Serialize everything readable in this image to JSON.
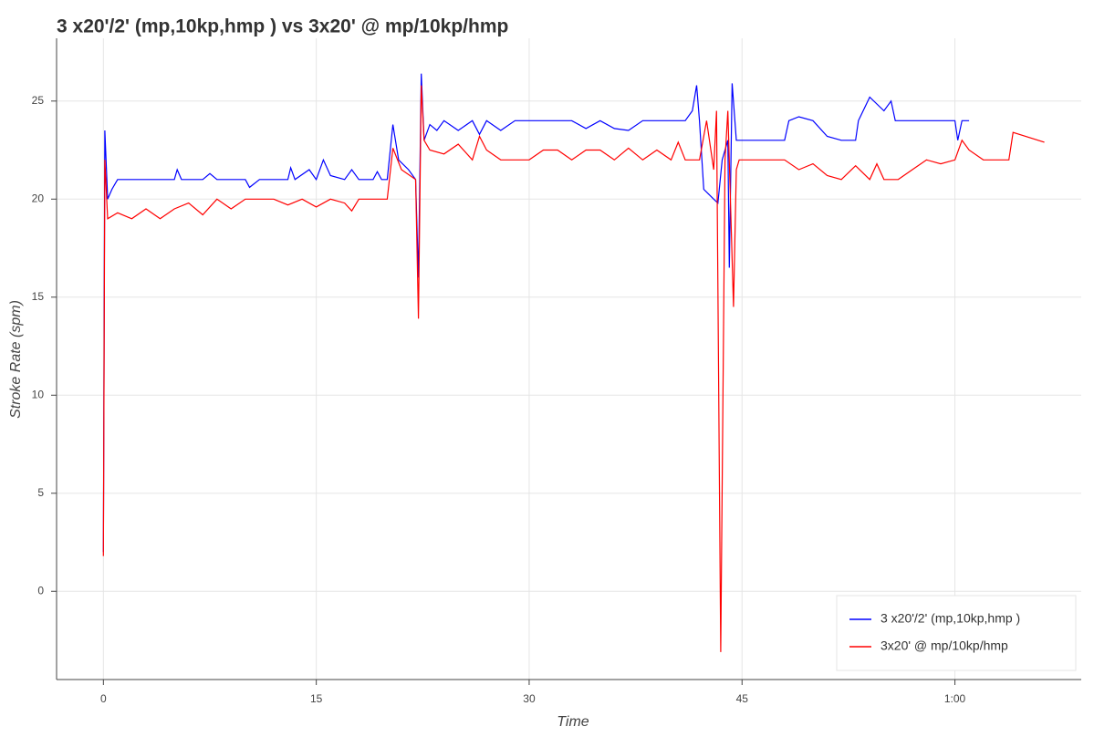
{
  "chart_data": {
    "type": "line",
    "title": "3 x20'/2' (mp,10kp,hmp ) vs 3x20' @ mp/10kp/hmp",
    "x_label": "Time",
    "y_label": "Stroke Rate (spm)",
    "xlim": [
      -3.3,
      68.9
    ],
    "ylim": [
      -4.5,
      28.2
    ],
    "xticks": [
      0,
      15,
      30,
      45,
      {
        "value": 60,
        "label": "1:00"
      }
    ],
    "yticks": [
      0,
      5,
      10,
      15,
      20,
      25
    ],
    "grid": true,
    "legend": "bottom-right",
    "series": [
      {
        "name": "3 x20'/2' (mp,10kp,hmp )",
        "color": "#0000ff",
        "x": [
          0,
          0.1,
          0.3,
          0.6,
          1,
          2,
          3,
          4,
          5,
          5.2,
          5.5,
          7,
          7.5,
          8,
          10,
          10.3,
          11,
          13,
          13.2,
          13.5,
          14.5,
          15,
          15.5,
          16,
          17,
          17.5,
          18,
          19,
          19.3,
          19.6,
          20,
          20.4,
          20.8,
          21.5,
          22,
          22.2,
          22.4,
          22.6,
          23,
          23.5,
          24,
          25,
          26,
          26.5,
          27,
          28,
          29,
          30,
          32,
          33,
          34,
          35,
          36,
          37,
          38,
          39,
          40,
          41,
          41.5,
          41.8,
          42,
          42.3,
          43,
          43.3,
          43.6,
          44,
          44.1,
          44.3,
          44.6,
          46,
          48,
          48.3,
          49,
          50,
          51,
          52,
          53,
          53.2,
          54,
          55,
          55.5,
          55.8,
          57,
          60,
          60.2,
          60.5,
          61
        ],
        "values": [
          2,
          23.5,
          20,
          20.5,
          21,
          21,
          21,
          21,
          21,
          21.5,
          21,
          21,
          21.3,
          21,
          21,
          20.6,
          21,
          21,
          21.6,
          21,
          21.5,
          21,
          22,
          21.2,
          21,
          21.5,
          21,
          21,
          21.4,
          21,
          21,
          23.8,
          22,
          21.5,
          21,
          16,
          26.4,
          23,
          23.8,
          23.5,
          24,
          23.5,
          24,
          23.3,
          24,
          23.5,
          24,
          24,
          24,
          24,
          23.6,
          24,
          23.6,
          23.5,
          24,
          24,
          24,
          24,
          24.5,
          25.8,
          24,
          20.5,
          20,
          19.8,
          22,
          23,
          16.5,
          25.9,
          23,
          23,
          23,
          24,
          24.2,
          24,
          23.2,
          23,
          23,
          24,
          25.2,
          24.5,
          25,
          24,
          24,
          24,
          23,
          24,
          24
        ]
      },
      {
        "name": "3x20' @ mp/10kp/hmp",
        "color": "#ff0000",
        "x": [
          0,
          0.1,
          0.3,
          1,
          2,
          3,
          4,
          5,
          6,
          7,
          8,
          9,
          10,
          12,
          13,
          14,
          15,
          16,
          17,
          17.5,
          18,
          19,
          20,
          20.4,
          21,
          22,
          22.2,
          22.4,
          22.6,
          23,
          24,
          25,
          26,
          26.5,
          27,
          28,
          29,
          30,
          31,
          32,
          33,
          34,
          35,
          36,
          37,
          38,
          39,
          40,
          40.5,
          41,
          42,
          42.5,
          43,
          43.2,
          43.5,
          43.8,
          44,
          44.4,
          44.6,
          44.8,
          45.5,
          48,
          49,
          50,
          51,
          52,
          53,
          54,
          54.5,
          55,
          56,
          57,
          58,
          59,
          60,
          60.5,
          61,
          62,
          63,
          63.8,
          64.1,
          66.3
        ],
        "values": [
          1.8,
          22,
          19,
          19.3,
          19,
          19.5,
          19,
          19.5,
          19.8,
          19.2,
          20,
          19.5,
          20,
          20,
          19.7,
          20,
          19.6,
          20,
          19.8,
          19.4,
          20,
          20,
          20,
          22.6,
          21.5,
          21,
          13.9,
          25.8,
          23,
          22.5,
          22.3,
          22.8,
          22,
          23.2,
          22.5,
          22,
          22,
          22,
          22.5,
          22.5,
          22,
          22.5,
          22.5,
          22,
          22.6,
          22,
          22.5,
          22,
          22.9,
          22,
          22,
          24,
          21.5,
          24.5,
          -3.1,
          22,
          24.5,
          14.5,
          21.5,
          22,
          22,
          22,
          21.5,
          21.8,
          21.2,
          21,
          21.7,
          21,
          21.8,
          21,
          21,
          21.5,
          22,
          21.8,
          22,
          23,
          22.5,
          22,
          22,
          22,
          23.4,
          22.9
        ]
      }
    ]
  }
}
